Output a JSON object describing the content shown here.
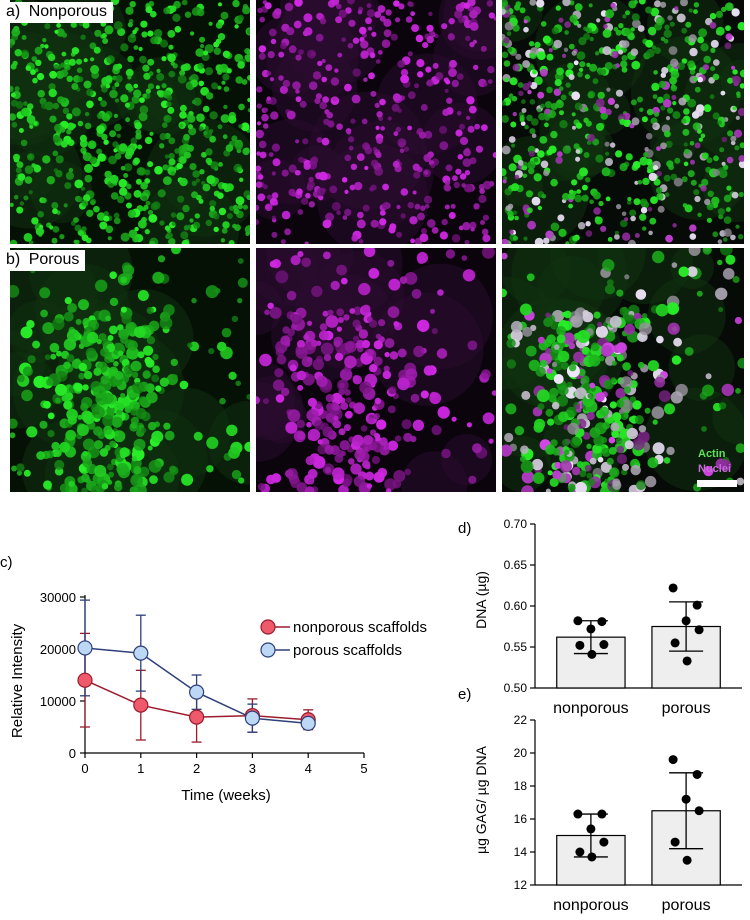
{
  "colors": {
    "actin": "#3ec93a",
    "nuclei": "#b03cc8",
    "nonporous": "#ee5a6b",
    "nonporous_line": "#9b1b2d",
    "porous": "#bcd8f5",
    "porous_line": "#2e3f7a",
    "bar_fill": "#eeeeee"
  },
  "micrographs": {
    "row_a_label": "a)",
    "row_a_title": "Nonporous",
    "row_b_label": "b)",
    "row_b_title": "Porous",
    "actin_label": "Actin",
    "nuclei_label": "Nuclei"
  },
  "chart_data": [
    {
      "panel": "c)",
      "type": "line",
      "xlabel": "Time (weeks)",
      "ylabel": "Relative  Intensity",
      "xlim": [
        0,
        5
      ],
      "ylim": [
        0,
        30000
      ],
      "xticks": [
        "0",
        "1",
        "2",
        "3",
        "4",
        "5"
      ],
      "yticks": [
        "0",
        "10000",
        "20000",
        "30000"
      ],
      "legend_position": "top-right",
      "series": [
        {
          "name": "nonporous scaffolds",
          "x": [
            0,
            1,
            2,
            3,
            4
          ],
          "values": [
            14000,
            9200,
            6900,
            7200,
            6400
          ],
          "errors": [
            9000,
            6700,
            4800,
            3200,
            1900
          ]
        },
        {
          "name": "porous scaffolds",
          "x": [
            0,
            1,
            2,
            3,
            4
          ],
          "values": [
            20200,
            19200,
            11700,
            6700,
            5700
          ],
          "errors": [
            9200,
            7300,
            3300,
            2700,
            900
          ]
        }
      ]
    },
    {
      "panel": "d)",
      "type": "bar",
      "ylabel": "DNA (µg)",
      "ylim": [
        0.5,
        0.7
      ],
      "yticks": [
        "0.50",
        "0.55",
        "0.60",
        "0.65",
        "0.70"
      ],
      "categories": [
        "nonporous",
        "porous"
      ],
      "values": [
        0.562,
        0.575
      ],
      "errors": [
        0.02,
        0.03
      ],
      "points": [
        [
          0.582,
          0.581,
          0.572,
          0.553,
          0.552,
          0.541
        ],
        [
          0.622,
          0.601,
          0.582,
          0.571,
          0.555,
          0.533
        ]
      ]
    },
    {
      "panel": "e)",
      "type": "bar",
      "ylabel": "µg GAG/ µg DNA",
      "ylim": [
        12,
        22
      ],
      "yticks": [
        "12",
        "14",
        "16",
        "18",
        "20",
        "22"
      ],
      "categories": [
        "nonporous",
        "porous"
      ],
      "values": [
        15.0,
        16.5
      ],
      "errors": [
        1.3,
        2.3
      ],
      "points": [
        [
          16.3,
          16.3,
          15.4,
          14.6,
          14.0,
          13.7
        ],
        [
          19.6,
          18.7,
          17.2,
          16.5,
          14.6,
          13.5
        ]
      ]
    }
  ]
}
